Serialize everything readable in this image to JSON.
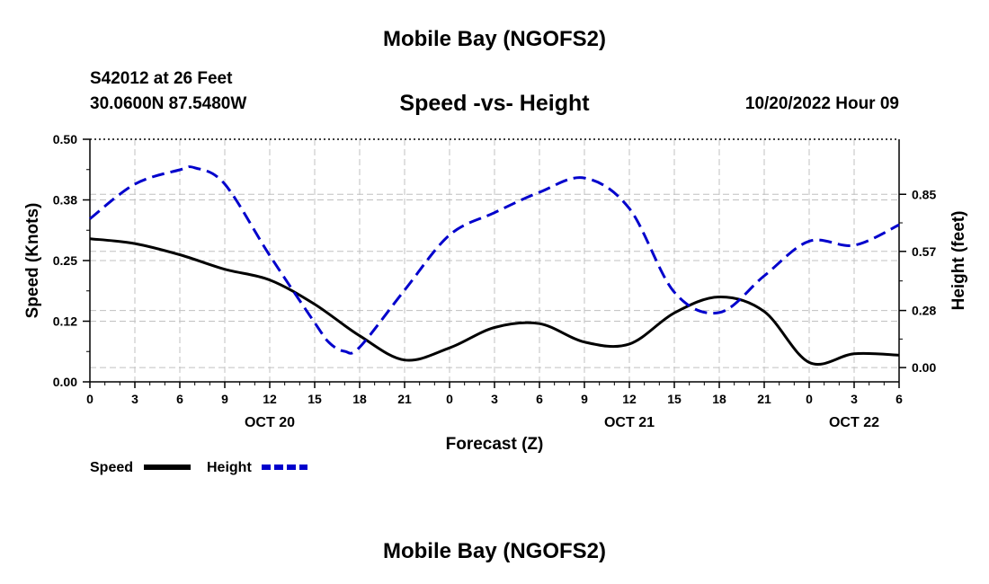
{
  "header": {
    "title": "Mobile Bay (NGOFS2)",
    "station": "S42012 at 26 Feet",
    "coords": "30.0600N  87.5480W",
    "chart_title": "Speed -vs- Height",
    "datetime": "10/20/2022 Hour 09"
  },
  "footer": {
    "title": "Mobile Bay (NGOFS2)"
  },
  "chart_data": {
    "type": "line",
    "title": "Speed -vs- Height",
    "xlabel": "Forecast (Z)",
    "ylabel_left": "Speed (Knots)",
    "ylabel_right": "Height (feet)",
    "x_range": [
      0,
      54
    ],
    "x_ticks": [
      0,
      3,
      6,
      9,
      12,
      15,
      18,
      21,
      24,
      27,
      30,
      33,
      36,
      39,
      42,
      45,
      48,
      51,
      54
    ],
    "x_tick_labels": [
      "0",
      "3",
      "6",
      "9",
      "12",
      "15",
      "18",
      "21",
      "0",
      "3",
      "6",
      "9",
      "12",
      "15",
      "18",
      "21",
      "0",
      "3",
      "6"
    ],
    "date_labels": [
      {
        "hour": 12,
        "label": "OCT 20"
      },
      {
        "hour": 36,
        "label": "OCT 21"
      },
      {
        "hour": 51,
        "label": "OCT 22"
      }
    ],
    "y_left_range": [
      0,
      0.5
    ],
    "y_left_ticks": [
      0.0,
      0.125,
      0.25,
      0.375,
      0.5
    ],
    "y_left_tick_labels": [
      "0.00",
      "0.12",
      "0.25",
      "0.38",
      "0.50"
    ],
    "y_right_range": [
      -0.07,
      1.12
    ],
    "y_right_ticks": [
      0.0,
      0.28,
      0.57,
      0.85
    ],
    "y_right_tick_labels": [
      "0.00",
      "0.28",
      "0.57",
      "0.85"
    ],
    "grid": true,
    "legend": {
      "position": "bottom-left",
      "entries": [
        {
          "name": "Speed",
          "color": "#000000",
          "style": "solid"
        },
        {
          "name": "Height",
          "color": "#0000cc",
          "style": "dashed"
        }
      ]
    },
    "series": [
      {
        "name": "Speed",
        "axis": "left",
        "color": "#000000",
        "style": "solid",
        "x": [
          0,
          3,
          6,
          9,
          12,
          15,
          18,
          21,
          24,
          27,
          30,
          33,
          36,
          39,
          42,
          45,
          48,
          51,
          54
        ],
        "values": [
          0.295,
          0.285,
          0.262,
          0.232,
          0.21,
          0.16,
          0.095,
          0.045,
          0.07,
          0.112,
          0.12,
          0.082,
          0.078,
          0.142,
          0.175,
          0.145,
          0.04,
          0.058,
          0.055
        ]
      },
      {
        "name": "Height",
        "axis": "right",
        "color": "#0000cc",
        "style": "dashed",
        "x": [
          0,
          3,
          6,
          7,
          9,
          12,
          15,
          16,
          17,
          18,
          21,
          24,
          27,
          30,
          33,
          36,
          39,
          42,
          45,
          48,
          51,
          54
        ],
        "values": [
          0.73,
          0.9,
          0.97,
          0.98,
          0.9,
          0.55,
          0.22,
          0.12,
          0.08,
          0.1,
          0.38,
          0.65,
          0.76,
          0.86,
          0.93,
          0.78,
          0.37,
          0.27,
          0.45,
          0.62,
          0.6,
          0.7
        ]
      }
    ]
  }
}
